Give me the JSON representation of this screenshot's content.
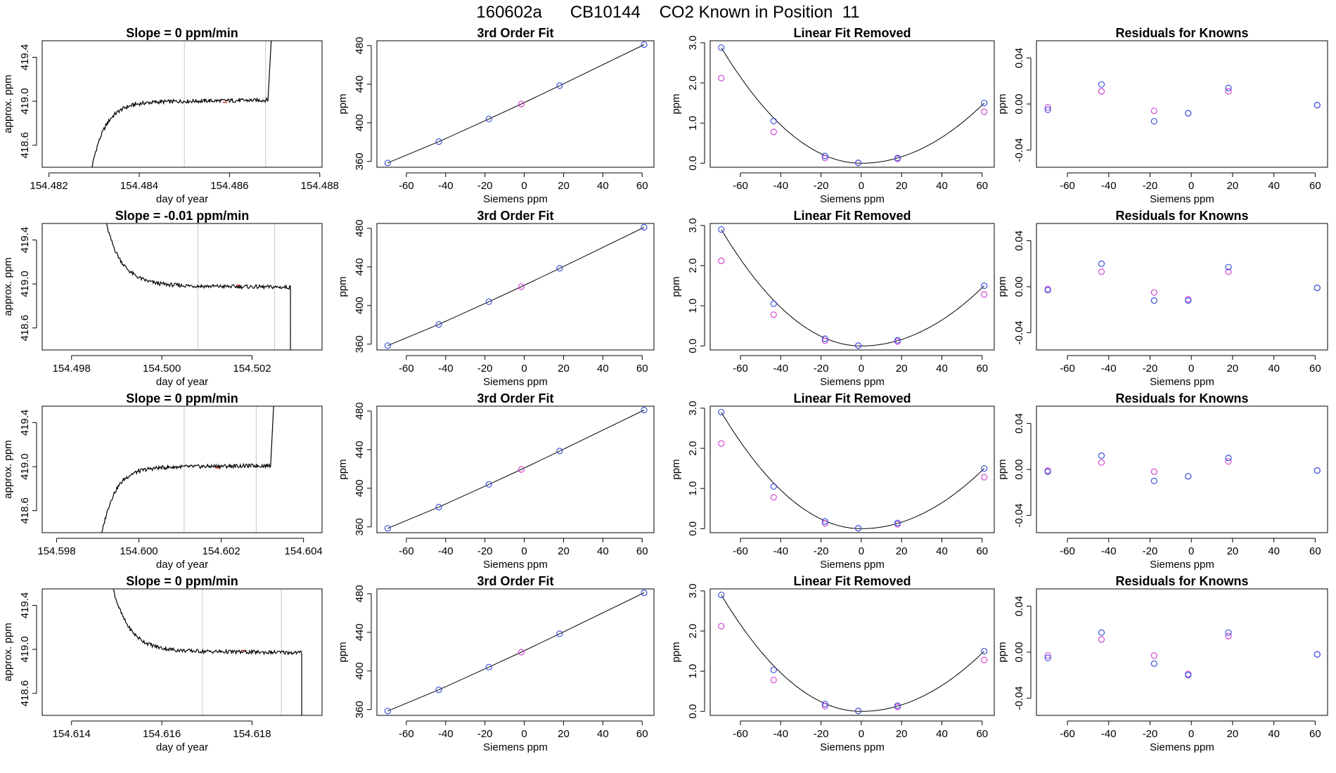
{
  "figure_title": "160602a      CB10144    CO2 Known in Position  11",
  "colors": {
    "trace": "#000000",
    "blue_points": "#3b55d9",
    "magenta_points": "#d24ad2",
    "cursor_lines": "#c8c8c8",
    "small_mark": "#d03030"
  },
  "common": {
    "siemens_x": [
      -69.5,
      -43.5,
      -18.0,
      -1.5,
      18.0,
      61.0
    ],
    "fit_y": [
      358.5,
      380.5,
      404.0,
      419.5,
      438.5,
      481.0
    ],
    "fit_xlim": [
      -75,
      66
    ],
    "fit_ylim": [
      354,
      485
    ],
    "fit_xticks": [
      -60,
      -40,
      -20,
      0,
      20,
      40,
      60
    ],
    "fit_yticks": [
      360,
      400,
      440,
      480
    ],
    "lin_xlim": [
      -75,
      66
    ],
    "lin_ylim": [
      -0.1,
      3.05
    ],
    "lin_yticks": [
      0.0,
      1.0,
      2.0,
      3.0
    ],
    "lin_yticklabels": [
      "0.0",
      "1.0",
      "2.0",
      "3.0"
    ],
    "res_xlim": [
      -75,
      66
    ],
    "res_ylim": [
      -0.055,
      0.055
    ],
    "res_yticks": [
      -0.04,
      0.0,
      0.04
    ],
    "res_yticklabels": [
      "-0.04",
      "0.00",
      "0.04"
    ],
    "ts_ylim": [
      418.4,
      419.55
    ],
    "ts_yticks": [
      418.6,
      419.0,
      419.4
    ],
    "ts_yticklabels": [
      "418.6",
      "419.0",
      "419.4"
    ]
  },
  "chart_data": [
    {
      "type": "line",
      "row": 1,
      "panels": {
        "timeseries": {
          "title": "Slope =  0  ppm/min",
          "xlabel": "day of year",
          "ylabel": "approx. ppm",
          "xlim": [
            154.48185,
            154.48805
          ],
          "xticks": [
            154.482,
            154.484,
            154.486,
            154.488
          ],
          "xticklabels": [
            "154.482",
            "154.484",
            "154.486",
            "154.488"
          ],
          "cursors": [
            154.485,
            154.4868
          ],
          "shape": "rise",
          "edges": [
            154.4829,
            154.48685
          ],
          "mid_mark": 154.4859
        },
        "fit": {
          "title": "3rd Order Fit",
          "xlabel": "Siemens ppm",
          "ylabel": "ppm"
        },
        "linear": {
          "title": "Linear Fit Removed",
          "xlabel": "Siemens ppm",
          "ylabel": "ppm",
          "blue": [
            2.88,
            1.05,
            0.18,
            0.01,
            0.13,
            1.5
          ],
          "magenta": [
            2.12,
            0.78,
            0.13,
            0.01,
            0.11,
            1.28
          ]
        },
        "residuals": {
          "title": "Residuals for Knowns",
          "xlabel": "Siemens ppm",
          "ylabel": "ppm",
          "blue": [
            -0.005,
            0.017,
            -0.015,
            -0.008,
            0.014,
            -0.001
          ],
          "magenta": [
            -0.003,
            0.011,
            -0.006,
            -0.008,
            0.011,
            -0.001
          ]
        }
      }
    },
    {
      "type": "line",
      "row": 2,
      "panels": {
        "timeseries": {
          "title": "Slope =  -0.01  ppm/min",
          "xlabel": "day of year",
          "ylabel": "approx. ppm",
          "xlim": [
            154.49735,
            154.50355
          ],
          "xticks": [
            154.498,
            154.5,
            154.502
          ],
          "xticklabels": [
            "154.498",
            "154.500",
            "154.502"
          ],
          "cursors": [
            154.5008,
            154.5025
          ],
          "shape": "fall",
          "edges": [
            154.4986,
            154.50285
          ],
          "mid_mark": 154.5017
        },
        "fit": {
          "title": "3rd Order Fit",
          "xlabel": "Siemens ppm",
          "ylabel": "ppm"
        },
        "linear": {
          "title": "Linear Fit Removed",
          "xlabel": "Siemens ppm",
          "ylabel": "ppm",
          "blue": [
            2.9,
            1.05,
            0.18,
            0.01,
            0.14,
            1.5
          ],
          "magenta": [
            2.12,
            0.78,
            0.13,
            0.01,
            0.11,
            1.28
          ]
        },
        "residuals": {
          "title": "Residuals for Knowns",
          "xlabel": "Siemens ppm",
          "ylabel": "ppm",
          "blue": [
            -0.003,
            0.02,
            -0.012,
            -0.012,
            0.017,
            -0.001
          ],
          "magenta": [
            -0.002,
            0.013,
            -0.005,
            -0.011,
            0.013,
            -0.001
          ]
        }
      }
    },
    {
      "type": "line",
      "row": 3,
      "panels": {
        "timeseries": {
          "title": "Slope =  0  ppm/min",
          "xlabel": "day of year",
          "ylabel": "approx. ppm",
          "xlim": [
            154.59765,
            154.60445
          ],
          "xticks": [
            154.598,
            154.6,
            154.602,
            154.604
          ],
          "xticklabels": [
            "154.598",
            "154.600",
            "154.602",
            "154.604"
          ],
          "cursors": [
            154.6011,
            154.60285
          ],
          "shape": "rise",
          "edges": [
            154.59905,
            154.6032
          ],
          "mid_mark": 154.6019
        },
        "fit": {
          "title": "3rd Order Fit",
          "xlabel": "Siemens ppm",
          "ylabel": "ppm"
        },
        "linear": {
          "title": "Linear Fit Removed",
          "xlabel": "Siemens ppm",
          "ylabel": "ppm",
          "blue": [
            2.9,
            1.05,
            0.18,
            0.01,
            0.14,
            1.5
          ],
          "magenta": [
            2.12,
            0.78,
            0.13,
            0.01,
            0.11,
            1.28
          ]
        },
        "residuals": {
          "title": "Residuals for Knowns",
          "xlabel": "Siemens ppm",
          "ylabel": "ppm",
          "blue": [
            -0.002,
            0.012,
            -0.01,
            -0.006,
            0.01,
            -0.001
          ],
          "magenta": [
            -0.001,
            0.006,
            -0.002,
            -0.006,
            0.007,
            -0.001
          ]
        }
      }
    },
    {
      "type": "line",
      "row": 4,
      "panels": {
        "timeseries": {
          "title": "Slope =  0  ppm/min",
          "xlabel": "day of year",
          "ylabel": "approx. ppm",
          "xlim": [
            154.61335,
            154.61955
          ],
          "xticks": [
            154.614,
            154.616,
            154.618
          ],
          "xticklabels": [
            "154.614",
            "154.616",
            "154.618"
          ],
          "cursors": [
            154.6169,
            154.61865
          ],
          "shape": "fall",
          "edges": [
            154.61475,
            154.6191
          ],
          "mid_mark": 154.6178
        },
        "fit": {
          "title": "3rd Order Fit",
          "xlabel": "Siemens ppm",
          "ylabel": "ppm"
        },
        "linear": {
          "title": "Linear Fit Removed",
          "xlabel": "Siemens ppm",
          "ylabel": "ppm",
          "blue": [
            2.9,
            1.03,
            0.18,
            0.01,
            0.14,
            1.5
          ],
          "magenta": [
            2.12,
            0.78,
            0.13,
            0.01,
            0.11,
            1.28
          ]
        },
        "residuals": {
          "title": "Residuals for Knowns",
          "xlabel": "Siemens ppm",
          "ylabel": "ppm",
          "blue": [
            -0.005,
            0.017,
            -0.01,
            -0.02,
            0.017,
            -0.002
          ],
          "magenta": [
            -0.003,
            0.011,
            -0.003,
            -0.019,
            0.014,
            -0.002
          ]
        }
      }
    }
  ]
}
